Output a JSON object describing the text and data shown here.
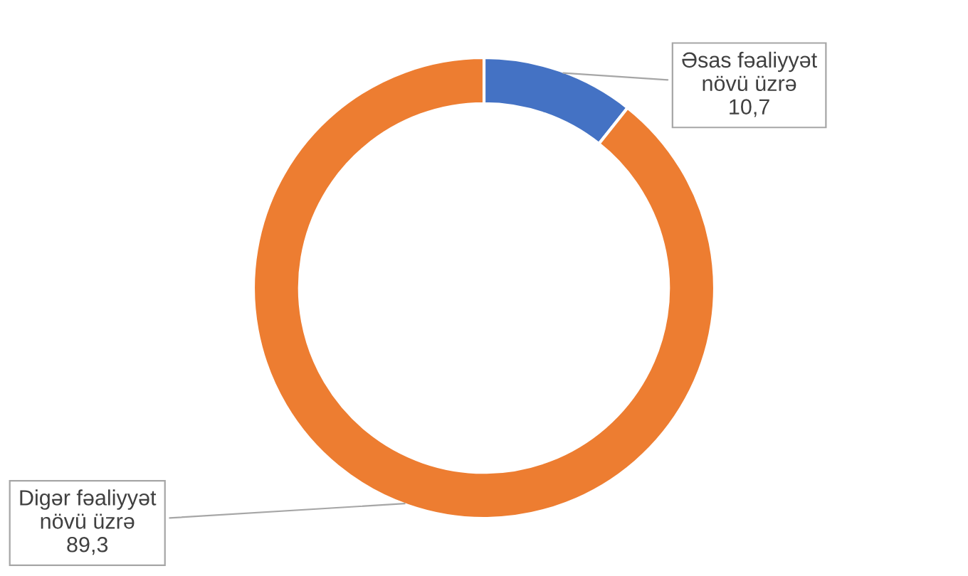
{
  "chart_data": {
    "type": "donut",
    "categories": [
      "Əsas fəaliyyət\nnövü üzrə",
      "Digər fəaliyyət\nnövü üzrə"
    ],
    "values": [
      10.7,
      89.3
    ],
    "value_labels": [
      "10,7",
      "89,3"
    ],
    "colors": [
      "#4472c4",
      "#ed7d31"
    ],
    "legend": false
  }
}
